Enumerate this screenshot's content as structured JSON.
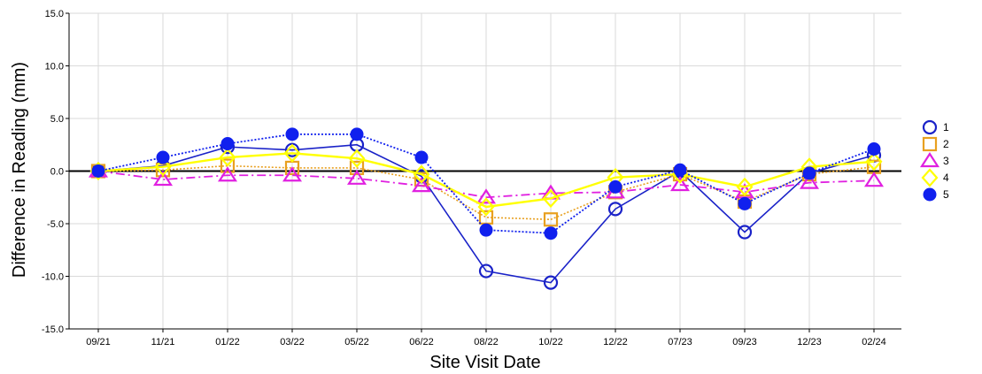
{
  "chart_data": {
    "type": "line",
    "title": "",
    "xlabel": "Site Visit Date",
    "ylabel": "Difference in Reading (mm)",
    "categories": [
      "09/21",
      "11/21",
      "01/22",
      "03/22",
      "05/22",
      "06/22",
      "08/22",
      "10/22",
      "12/22",
      "07/23",
      "09/23",
      "12/23",
      "02/24"
    ],
    "y_ticks": [
      "15.0",
      "10.0",
      "5.0",
      "0.0",
      "-5.0",
      "-10.0",
      "-15.0"
    ],
    "ylim": [
      -15,
      15
    ],
    "grid": true,
    "legend_position": "right",
    "series": [
      {
        "name": "1",
        "marker": "circle-open",
        "color": "#1a22c8",
        "line_style": "solid",
        "values": [
          0,
          0.5,
          2.3,
          2.0,
          2.5,
          -0.5,
          -9.5,
          -10.6,
          -3.6,
          0.0,
          -5.8,
          -0.2,
          1.5
        ]
      },
      {
        "name": "2",
        "marker": "square-open",
        "color": "#e8a020",
        "line_style": "dotted",
        "values": [
          0,
          0.1,
          0.5,
          0.3,
          0.3,
          -0.8,
          -4.4,
          -4.6,
          -2.0,
          -0.3,
          -2.9,
          -0.3,
          0.4
        ]
      },
      {
        "name": "3",
        "marker": "triangle-open",
        "color": "#e020e0",
        "line_style": "dashdot",
        "values": [
          0,
          -0.8,
          -0.4,
          -0.4,
          -0.7,
          -1.4,
          -2.5,
          -2.1,
          -2.0,
          -1.3,
          -2.0,
          -1.1,
          -0.9
        ]
      },
      {
        "name": "4",
        "marker": "diamond-open",
        "color": "#ffff00",
        "line_style": "solid",
        "values": [
          0,
          0.4,
          1.3,
          1.7,
          1.2,
          -0.3,
          -3.4,
          -2.6,
          -0.6,
          -0.3,
          -1.5,
          0.4,
          0.9
        ]
      },
      {
        "name": "5",
        "marker": "circle-filled",
        "color": "#1020ee",
        "line_style": "dotted",
        "values": [
          0,
          1.3,
          2.6,
          3.5,
          3.5,
          1.3,
          -5.6,
          -5.9,
          -1.5,
          0.1,
          -3.1,
          -0.2,
          2.1
        ]
      }
    ]
  }
}
